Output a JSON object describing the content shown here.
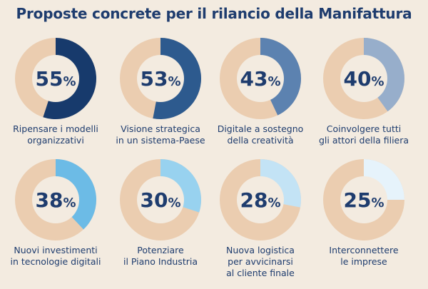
{
  "chart_data": {
    "type": "pie",
    "title": "Proposte concrete per il rilancio della Manifattura",
    "track_color": "#ebcdb0",
    "center_color": "#f3ebe0",
    "text_color": "#1e3c6e",
    "items": [
      {
        "label": "Ripensare i modelli\norganizzativi",
        "value": 55,
        "color": "#173a6c"
      },
      {
        "label": "Visione strategica\nin un sistema-Paese",
        "value": 53,
        "color": "#2d5a8e"
      },
      {
        "label": "Digitale a sostegno\ndella creatività",
        "value": 43,
        "color": "#5c82b0"
      },
      {
        "label": "Coinvolgere tutti\ngli attori della filiera",
        "value": 40,
        "color": "#97aecb"
      },
      {
        "label": "Nuovi investimenti\nin tecnologie digitali",
        "value": 38,
        "color": "#6cbbe6"
      },
      {
        "label": "Potenziare\nil Piano Industria",
        "value": 30,
        "color": "#98d2ef"
      },
      {
        "label": "Nuova logistica\nper avvicinarsi\nal cliente finale",
        "value": 28,
        "color": "#c3e3f5"
      },
      {
        "label": "Interconnettere\nle imprese",
        "value": 25,
        "color": "#e6f3fb"
      }
    ]
  }
}
